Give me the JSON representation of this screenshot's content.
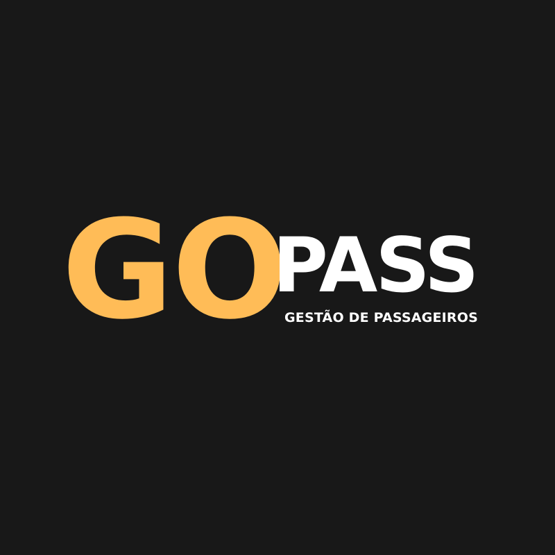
{
  "brand": {
    "word_primary": "GO",
    "word_secondary": "PASS",
    "tagline": "GESTÃO DE PASSAGEIROS"
  },
  "colors": {
    "background": "#181818",
    "accent": "#FFBC57",
    "text": "#FFFFFF"
  }
}
